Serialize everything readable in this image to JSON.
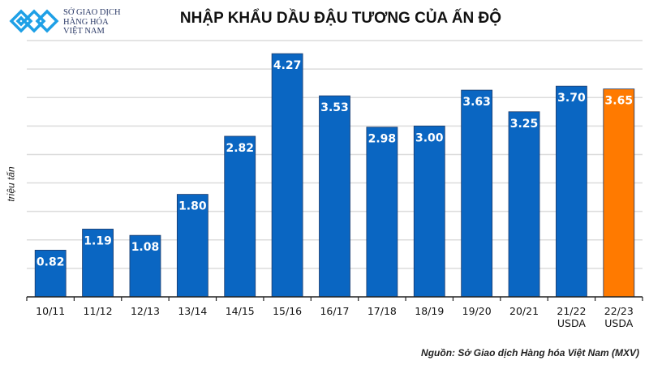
{
  "logo": {
    "line1": "SỞ GIAO DỊCH",
    "line2": "HÀNG HÓA",
    "line3": "VIỆT NAM"
  },
  "chart_data": {
    "type": "bar",
    "title": "NHẬP KHẨU DẦU ĐẬU TƯƠNG CỦA ẤN ĐỘ",
    "ylabel": "triệu tấn",
    "xlabel": "",
    "categories": [
      "10/11",
      "11/12",
      "12/13",
      "13/14",
      "14/15",
      "15/16",
      "16/17",
      "17/18",
      "18/19",
      "19/20",
      "20/21",
      "21/22\nUSDA",
      "22/23\nUSDA"
    ],
    "values": [
      0.82,
      1.19,
      1.08,
      1.8,
      2.82,
      4.27,
      3.53,
      2.98,
      3.0,
      3.63,
      3.25,
      3.7,
      3.65
    ],
    "data_labels": [
      "0.82",
      "1.19",
      "1.08",
      "1.80",
      "2.82",
      "4.27",
      "3.53",
      "2.98",
      "3.00",
      "3.63",
      "3.25",
      "3.70",
      "3.65"
    ],
    "ylim": [
      0,
      4.5
    ],
    "grid": true,
    "grid_step": 0.5,
    "colors": {
      "default": "#0a66c2",
      "highlight": "#ff7a00"
    },
    "highlight_index": 12
  },
  "source": "Nguồn: Sở Giao dịch Hàng hóa Việt Nam (MXV)"
}
